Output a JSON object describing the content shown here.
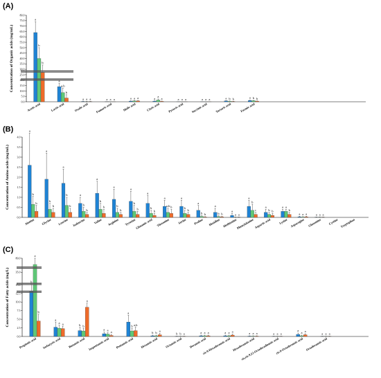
{
  "colors": {
    "s1": "#1f83d4",
    "s2": "#5fc777",
    "s3": "#ee6b2a"
  },
  "chart_data": [
    {
      "type": "bar",
      "panel_label": "(A)",
      "ylabel": "Concentration of Organic acids (mg/mL)",
      "yticks": [
        "0.0",
        "5.0",
        "10.0",
        "15.0",
        "20.0",
        "25.0",
        "30.0",
        "35.0",
        "40.0",
        "45.0",
        "50.0",
        "55.0",
        "60.0",
        "65.0",
        "70.0",
        "75.0",
        "80.0"
      ],
      "ylim": [
        0,
        80
      ],
      "categories": [
        "Acetic acid",
        "Lactic acid",
        "Oxalic acid",
        "Fumaric acid",
        "Malic acid",
        "Citric acid",
        "Pyruvic acid",
        "Succinic acid",
        "Tartaric acid",
        "Formic acid"
      ],
      "series": [
        {
          "values": [
            64,
            14,
            0.3,
            0.1,
            0.6,
            0.6,
            0.05,
            0.05,
            0.8,
            1.2
          ],
          "errors": [
            10,
            3,
            0.3,
            0.1,
            0.4,
            0.3,
            0.05,
            0.05,
            0.3,
            0.4
          ]
        },
        {
          "values": [
            40,
            8.5,
            0.2,
            0.05,
            0.8,
            1.6,
            0.05,
            0.05,
            0.5,
            1.0
          ],
          "errors": [
            10,
            4,
            0.2,
            0.05,
            0.4,
            1.0,
            0.05,
            0.05,
            0.3,
            0.3
          ]
        },
        {
          "values": [
            27,
            3.5,
            0.2,
            0.05,
            0.8,
            0.4,
            0.05,
            0.05,
            0.3,
            0.6
          ],
          "errors": [
            7,
            3,
            0.2,
            0.05,
            0.5,
            0.3,
            0.05,
            0.05,
            0.2,
            0.3
          ]
        }
      ],
      "labels": [
        [
          "a",
          "b",
          "b"
        ],
        [
          "a",
          "a,b",
          "b"
        ],
        [
          "a",
          "a",
          "a"
        ],
        [
          "a",
          "a",
          "a"
        ],
        [
          "a",
          "a",
          "a"
        ],
        [
          "a",
          "a",
          "a"
        ],
        [
          "a",
          "a",
          "a"
        ],
        [
          "a",
          "a",
          "a"
        ],
        [
          "a",
          "b",
          "b"
        ],
        [
          "a",
          "b",
          "b"
        ]
      ],
      "axis_breaks": [
        28,
        20.5
      ]
    },
    {
      "type": "bar",
      "panel_label": "(B)",
      "ylabel": "Concentration of Amino acids (mg/mL)",
      "yticks": [
        "0.0",
        "0.5",
        "1.0",
        "1.5",
        "2.0",
        "2.5",
        "3.0",
        "3.5",
        "4.0"
      ],
      "ylim": [
        0,
        4
      ],
      "categories": [
        "Alanine",
        "Glycine",
        "Leucine",
        "Isoleucine",
        "Valine",
        "Arginine",
        "Tyrosine",
        "Glutamic acid",
        "Threonine",
        "Serine",
        "Proline",
        "Histidine",
        "Methionine",
        "Phenylalanine",
        "Aspartic acid",
        "Lysine",
        "Asparagine",
        "Glutamine",
        "Cystine",
        "Tryptophan"
      ],
      "series": [
        {
          "values": [
            2.6,
            1.9,
            1.7,
            0.7,
            1.2,
            0.9,
            0.8,
            0.7,
            0.55,
            0.55,
            0.35,
            0.25,
            0.1,
            0.55,
            0.25,
            0.3,
            0.03,
            0.01,
            0,
            0
          ],
          "errors": [
            1.6,
            1.3,
            0.7,
            0.3,
            0.6,
            0.5,
            0.5,
            0.4,
            0.3,
            0.3,
            0.25,
            0.2,
            0.1,
            0.3,
            0.15,
            0.1,
            0.03,
            0.01,
            0,
            0
          ]
        },
        {
          "values": [
            0.65,
            0.4,
            0.6,
            0.3,
            0.4,
            0.25,
            0.3,
            0.2,
            0.25,
            0.2,
            0.05,
            0.04,
            0.01,
            0.35,
            0.15,
            0.3,
            0.02,
            0.01,
            0,
            0
          ],
          "errors": [
            0.4,
            0.3,
            0.4,
            0.2,
            0.3,
            0.2,
            0.3,
            0.15,
            0.2,
            0.15,
            0.05,
            0.04,
            0.01,
            0.3,
            0.1,
            0.1,
            0.02,
            0.01,
            0,
            0
          ]
        },
        {
          "values": [
            0.3,
            0.25,
            0.25,
            0.15,
            0.2,
            0.15,
            0.15,
            0.1,
            0.2,
            0.15,
            0.02,
            0.03,
            0.01,
            0.15,
            0.1,
            0.15,
            0.03,
            0.01,
            0,
            0
          ],
          "errors": [
            0.3,
            0.2,
            0.2,
            0.1,
            0.2,
            0.1,
            0.15,
            0.1,
            0.2,
            0.1,
            0.02,
            0.03,
            0.01,
            0.1,
            0.1,
            0.1,
            0.03,
            0.01,
            0,
            0
          ]
        }
      ],
      "labels": [
        [
          "a",
          "b",
          "b"
        ],
        [
          "a",
          "b",
          "b"
        ],
        [
          "a",
          "b",
          "b"
        ],
        [
          "a",
          "b",
          "b"
        ],
        [
          "a",
          "b",
          "b"
        ],
        [
          "a",
          "b",
          "b"
        ],
        [
          "a",
          "b",
          "b"
        ],
        [
          "a",
          "b",
          "b"
        ],
        [
          "a",
          "a,b",
          "b"
        ],
        [
          "a",
          "b",
          "b"
        ],
        [
          "a",
          "b",
          "b"
        ],
        [
          "a",
          "b",
          "b"
        ],
        [
          "a",
          "a",
          "a"
        ],
        [
          "a",
          "b",
          "c"
        ],
        [
          "a",
          "b",
          "b"
        ],
        [
          "a",
          "a",
          "b"
        ],
        [
          "a",
          "a",
          "a"
        ],
        [
          "a",
          "a",
          "a"
        ],
        [
          "",
          "",
          " "
        ],
        [
          "",
          "",
          ""
        ]
      ]
    },
    {
      "type": "bar",
      "panel_label": "(C)",
      "ylabel": "Concentration of Fatty acids (mg/L)",
      "yticks": [
        "0.0",
        "2.5",
        "5.0",
        "7.5",
        "10.0",
        "12.5",
        "15.0",
        "35.0",
        "80.0"
      ],
      "ylim": [
        0,
        80
      ],
      "categories": [
        "Propionic acid",
        "Isobutyric acid",
        "Butanoic acid",
        "Isopentanoic acid",
        "Pentanoic acid",
        "Hexanoic acid",
        "Octanoic acid",
        "Decanoic acid",
        "cis-9-Hexadecenoic acid",
        "Hexadecanoic acid",
        "cis,cis-9,12-Octadecadienoic acid",
        "cis-9-Octadecenoic acid",
        "Octadecanoic acid"
      ],
      "series": [
        {
          "values": [
            13,
            2.7,
            1.7,
            0.8,
            4.2,
            0.2,
            0.05,
            0.2,
            0.2,
            0.1,
            0.05,
            0.6,
            0.05
          ],
          "errors": [
            3,
            1.5,
            1,
            0.5,
            2,
            0.2,
            0.05,
            0.2,
            0.2,
            0.1,
            0.05,
            0.4,
            0.05
          ]
        },
        {
          "values": [
            60,
            2.4,
            1.6,
            0.7,
            1.6,
            0.2,
            0.05,
            0.2,
            0.2,
            0.1,
            0.05,
            0.2,
            0.05
          ],
          "errors": [
            20,
            0.9,
            0.8,
            0.4,
            0.8,
            0.2,
            0.05,
            0.2,
            0.2,
            0.1,
            0.05,
            0.2,
            0.05
          ]
        },
        {
          "values": [
            4.5,
            2.3,
            8.5,
            0.3,
            1.7,
            0.5,
            0.05,
            0.2,
            0.4,
            0.1,
            0.05,
            0.5,
            0.05
          ],
          "errors": [
            2,
            0.7,
            1.2,
            0.3,
            1,
            0.4,
            0.05,
            0.2,
            0.3,
            0.1,
            0.05,
            0.3,
            0.05
          ]
        }
      ],
      "labels": [
        [
          "b",
          "a",
          "b"
        ],
        [
          "a",
          "a",
          "a"
        ],
        [
          "b",
          "b",
          "a"
        ],
        [
          "a",
          "a",
          "a"
        ],
        [
          "a",
          "b",
          "a,b"
        ],
        [
          "b",
          "b",
          "a"
        ],
        [
          "b",
          "b",
          "a"
        ],
        [
          "a",
          "a",
          "a"
        ],
        [
          "a",
          "a",
          "a"
        ],
        [
          "a",
          "a",
          "a"
        ],
        [
          "a",
          "a",
          "a"
        ],
        [
          "a",
          "a",
          "a"
        ],
        [
          "a",
          "a",
          "a"
        ]
      ],
      "axis_breaks": [
        50,
        16.5,
        13
      ]
    }
  ]
}
